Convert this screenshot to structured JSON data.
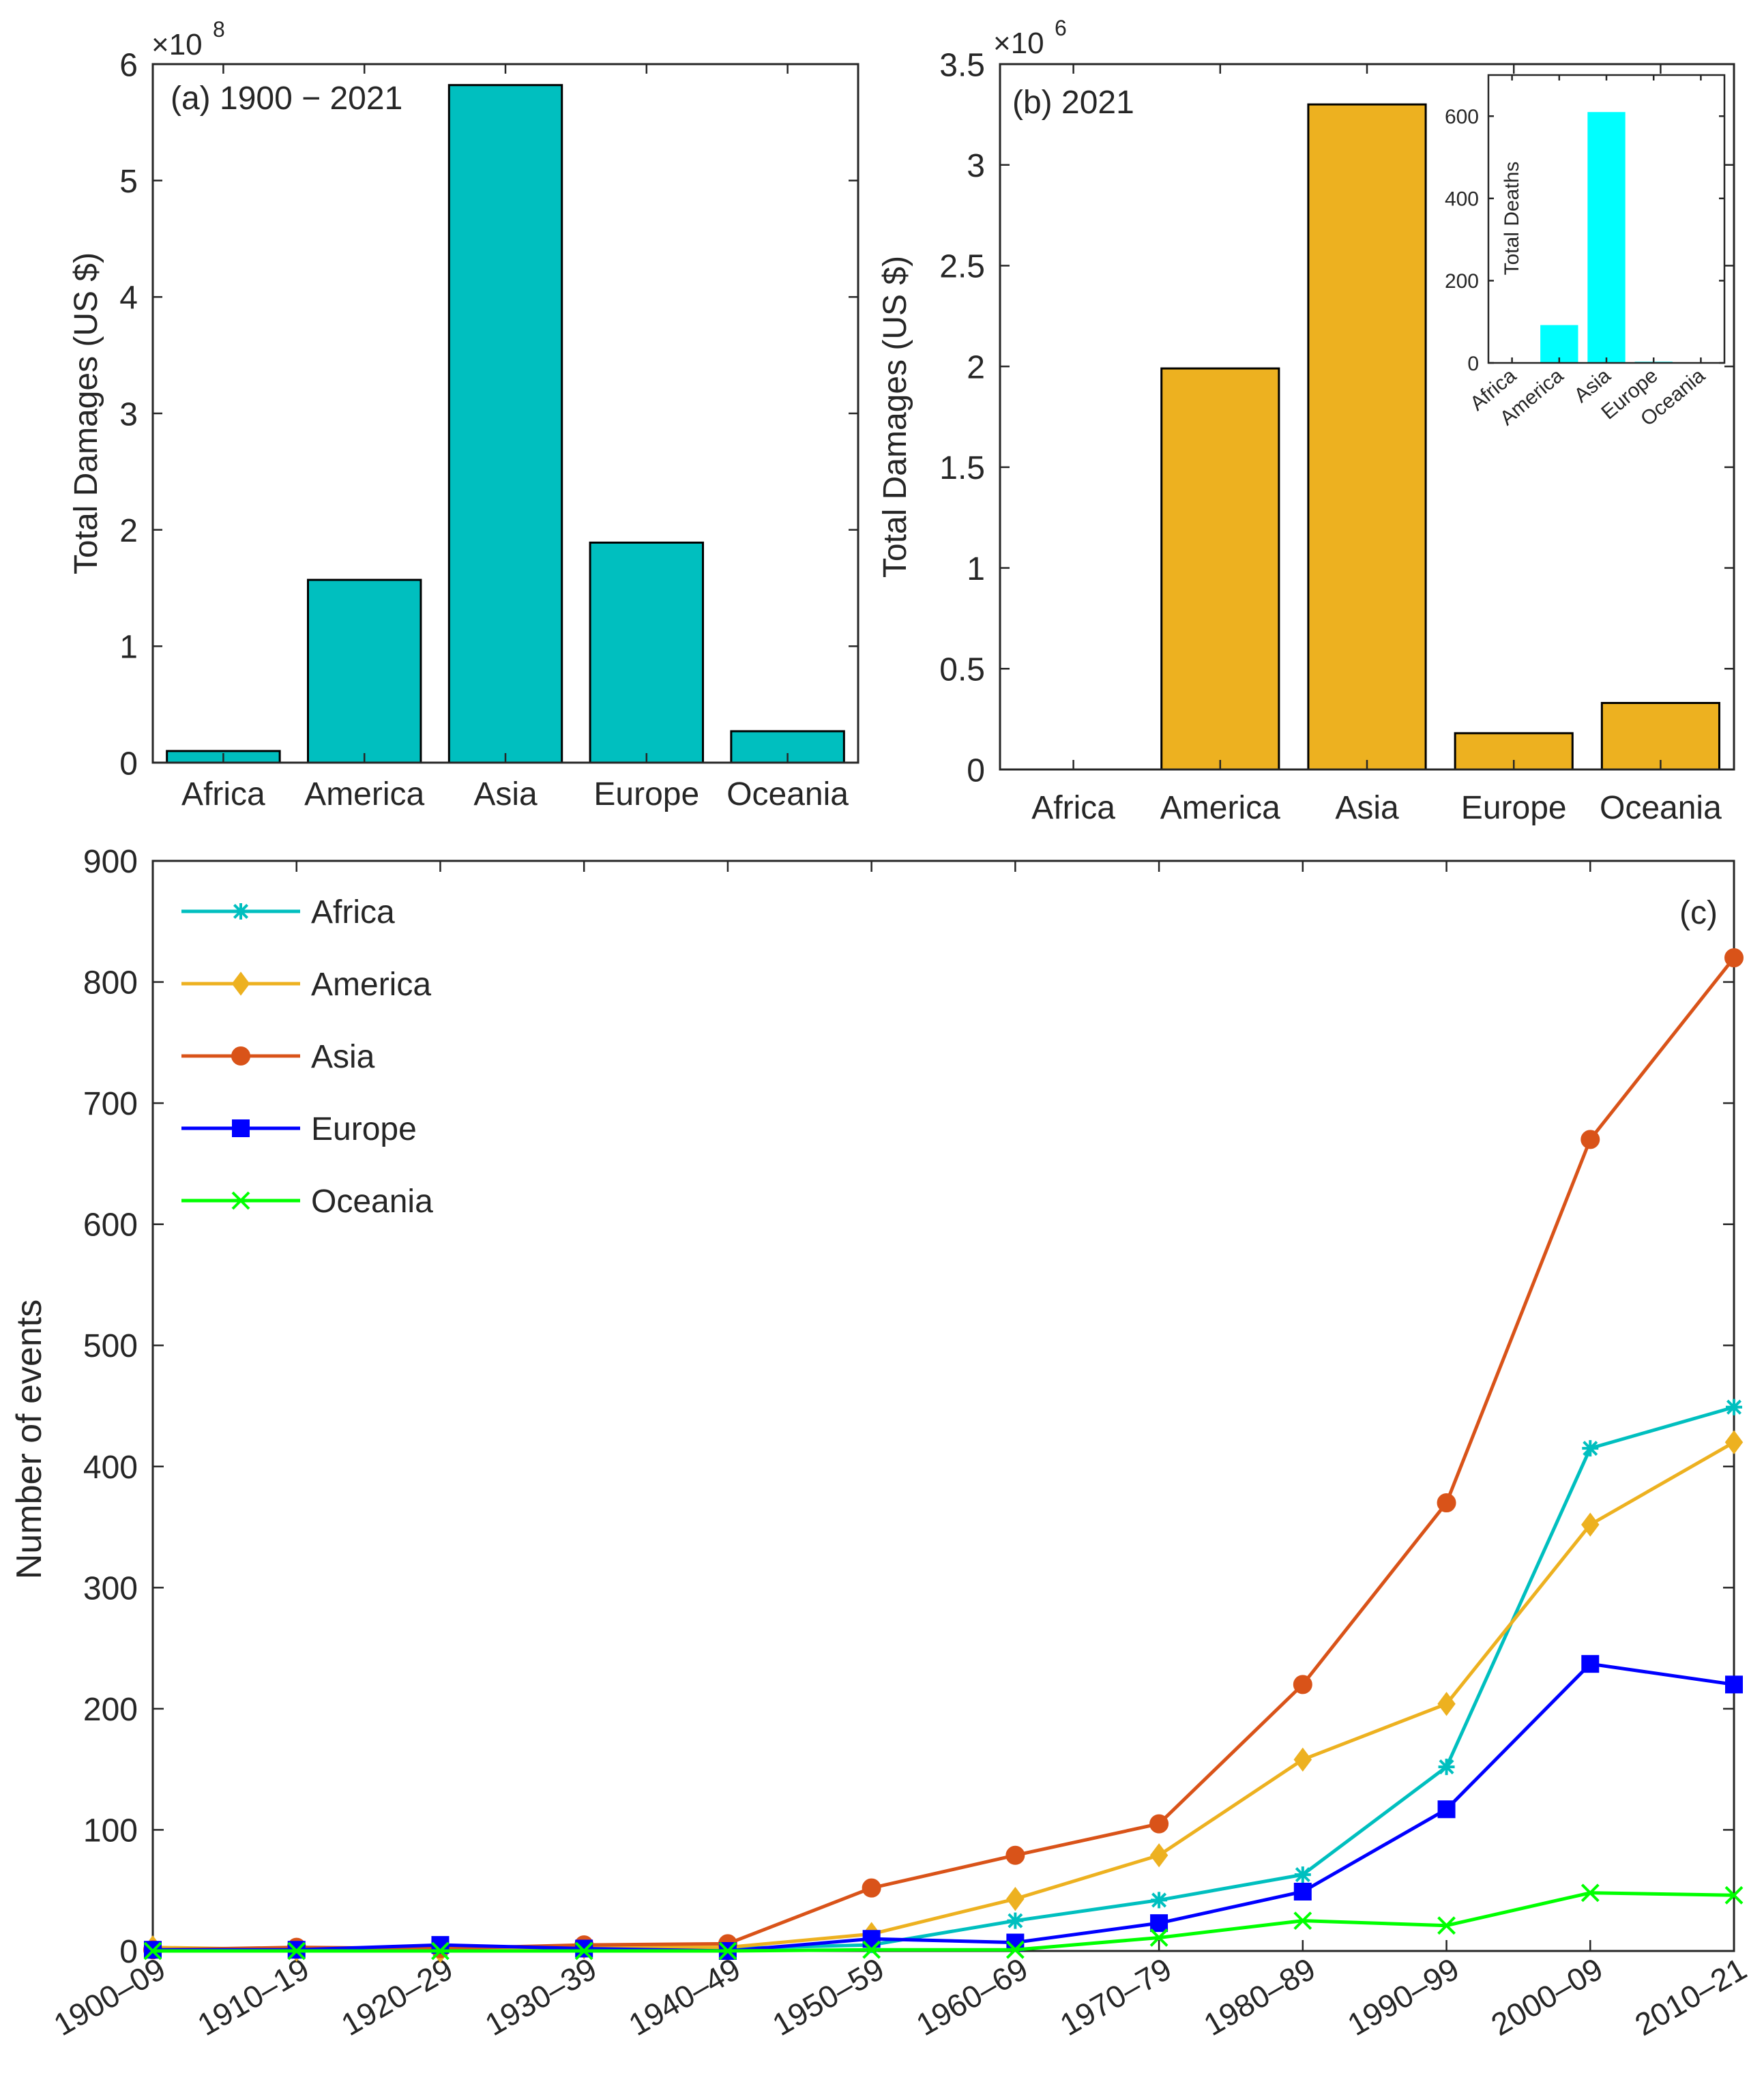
{
  "chart_data": [
    {
      "id": "a",
      "type": "bar",
      "panel_label": "(a) 1900 − 2021",
      "exponent": "8",
      "categories": [
        "Africa",
        "America",
        "Asia",
        "Europe",
        "Oceania"
      ],
      "values": [
        0.1,
        1.57,
        5.82,
        1.89,
        0.27
      ],
      "ylabel": "Total Damages (US $)",
      "ylim": [
        0,
        6
      ],
      "yticks": [
        "0",
        "1",
        "2",
        "3",
        "4",
        "5",
        "6"
      ],
      "color": "#00BFBF"
    },
    {
      "id": "b",
      "type": "bar",
      "panel_label": "(b) 2021",
      "exponent": "6",
      "categories": [
        "Africa",
        "America",
        "Asia",
        "Europe",
        "Oceania"
      ],
      "values": [
        0.0,
        1.99,
        3.3,
        0.18,
        0.33
      ],
      "ylabel": "Total Damages (US $)",
      "ylim": [
        0,
        3.5
      ],
      "yticks": [
        "0",
        "0.5",
        "1",
        "1.5",
        "2",
        "2.5",
        "3",
        "3.5"
      ],
      "color": "#EDB120"
    },
    {
      "id": "b-inset",
      "type": "bar",
      "categories": [
        "Africa",
        "America",
        "Asia",
        "Europe",
        "Oceania"
      ],
      "values": [
        0,
        92,
        610,
        3,
        0
      ],
      "ylabel": "Total Deaths",
      "ylim": [
        0,
        700
      ],
      "yticks": [
        "0",
        "200",
        "400",
        "600"
      ],
      "color": "#00FFFF"
    },
    {
      "id": "c",
      "type": "line",
      "panel_label": "(c)",
      "categories": [
        "1900–09",
        "1910–19",
        "1920–29",
        "1930–39",
        "1940–49",
        "1950–59",
        "1960–69",
        "1970–79",
        "1980–89",
        "1990–99",
        "2000–09",
        "2010–21"
      ],
      "ylabel": "Number of events",
      "ylim": [
        0,
        900
      ],
      "yticks": [
        "0",
        "100",
        "200",
        "300",
        "400",
        "500",
        "600",
        "700",
        "800",
        "900"
      ],
      "legend_position": "top-left",
      "series": [
        {
          "name": "Africa",
          "color": "#00BFBF",
          "marker": "asterisk",
          "values": [
            1,
            1,
            1,
            2,
            2,
            5,
            25,
            42,
            63,
            152,
            415,
            449
          ]
        },
        {
          "name": "America",
          "color": "#EDB120",
          "marker": "diamond",
          "values": [
            3,
            1,
            0,
            3,
            3,
            14,
            43,
            79,
            158,
            204,
            352,
            420
          ]
        },
        {
          "name": "Asia",
          "color": "#D95319",
          "marker": "circle",
          "values": [
            1,
            3,
            2,
            5,
            6,
            52,
            79,
            105,
            220,
            370,
            670,
            820
          ]
        },
        {
          "name": "Europe",
          "color": "#0000FF",
          "marker": "square",
          "values": [
            1,
            1,
            5,
            2,
            0,
            10,
            7,
            23,
            49,
            117,
            237,
            220
          ]
        },
        {
          "name": "Oceania",
          "color": "#00FF00",
          "marker": "x",
          "values": [
            0,
            0,
            0,
            0,
            0,
            1,
            1,
            11,
            25,
            21,
            48,
            46
          ]
        }
      ]
    }
  ]
}
